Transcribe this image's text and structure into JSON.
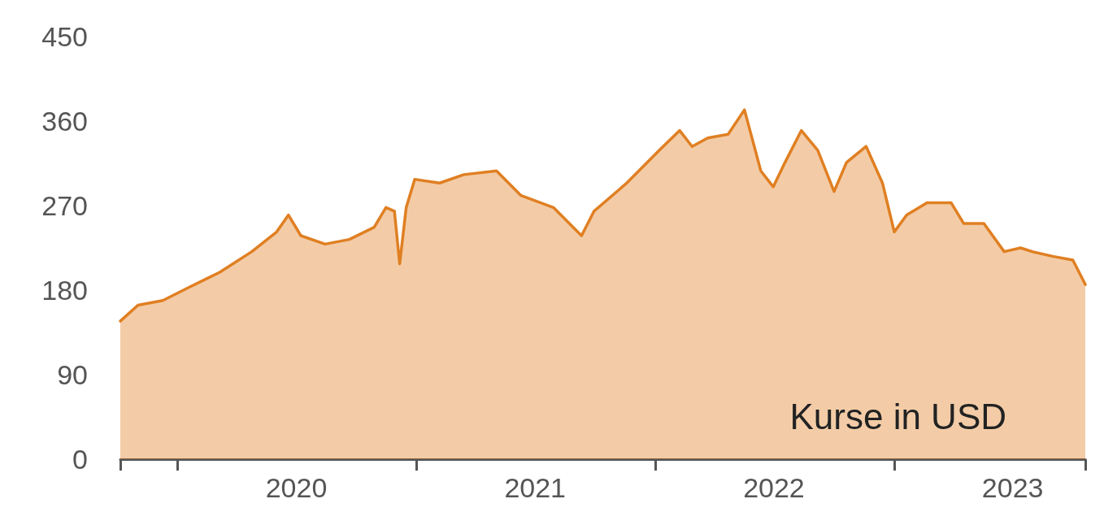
{
  "chart_data": {
    "type": "area",
    "color": "#e07f22",
    "x": [
      "2019-10-06",
      "2019-11-02",
      "2019-12-10",
      "2020-01-16",
      "2020-03-06",
      "2020-04-24",
      "2020-06-01",
      "2020-06-19",
      "2020-07-08",
      "2020-08-14",
      "2020-09-20",
      "2020-10-28",
      "2020-11-15",
      "2020-11-28",
      "2020-12-06",
      "2020-12-16",
      "2020-12-29",
      "2021-02-05",
      "2021-03-14",
      "2021-05-03",
      "2021-06-09",
      "2021-07-29",
      "2021-09-10",
      "2021-09-29",
      "2021-11-18",
      "2022-01-07",
      "2022-02-07",
      "2022-02-26",
      "2022-03-22",
      "2022-04-22",
      "2022-05-17",
      "2022-06-11",
      "2022-06-30",
      "2022-07-18",
      "2022-08-12",
      "2022-09-06",
      "2022-10-01",
      "2022-10-20",
      "2022-11-19",
      "2022-12-14",
      "2023-01-01",
      "2023-01-20",
      "2023-02-20",
      "2023-03-29",
      "2023-04-17",
      "2023-05-18",
      "2023-06-18",
      "2023-07-13",
      "2023-07-31",
      "2023-08-31",
      "2023-10-01",
      "2023-10-20"
    ],
    "values": [
      147,
      164,
      169,
      182,
      199,
      221,
      242,
      260,
      238,
      229,
      234,
      247,
      268,
      264,
      208,
      268,
      298,
      294,
      303,
      307,
      281,
      268,
      238,
      264,
      294,
      329,
      350,
      333,
      342,
      346,
      372,
      307,
      290,
      316,
      350,
      329,
      285,
      316,
      333,
      294,
      242,
      260,
      273,
      273,
      251,
      251,
      221,
      225,
      221,
      216,
      212,
      186
    ],
    "xlim": [
      "2019-10-06",
      "2023-10-20"
    ],
    "xticks": [
      {
        "value": "2019-10-06",
        "label": null
      },
      {
        "value": "2020-01-01",
        "label": null
      },
      {
        "value": "2020-07-01",
        "label": "2020"
      },
      {
        "value": "2021-01-01",
        "label": null
      },
      {
        "value": "2021-07-01",
        "label": "2021"
      },
      {
        "value": "2022-01-01",
        "label": null
      },
      {
        "value": "2022-07-01",
        "label": "2022"
      },
      {
        "value": "2023-01-01",
        "label": null
      },
      {
        "value": "2023-07-01",
        "label": "2023"
      },
      {
        "value": "2023-10-20",
        "label": null
      }
    ],
    "ylim": [
      0,
      450
    ],
    "yticks": [
      0,
      90,
      180,
      270,
      360,
      450
    ],
    "grid": false,
    "annotations": [
      "Kurse in USD"
    ]
  }
}
